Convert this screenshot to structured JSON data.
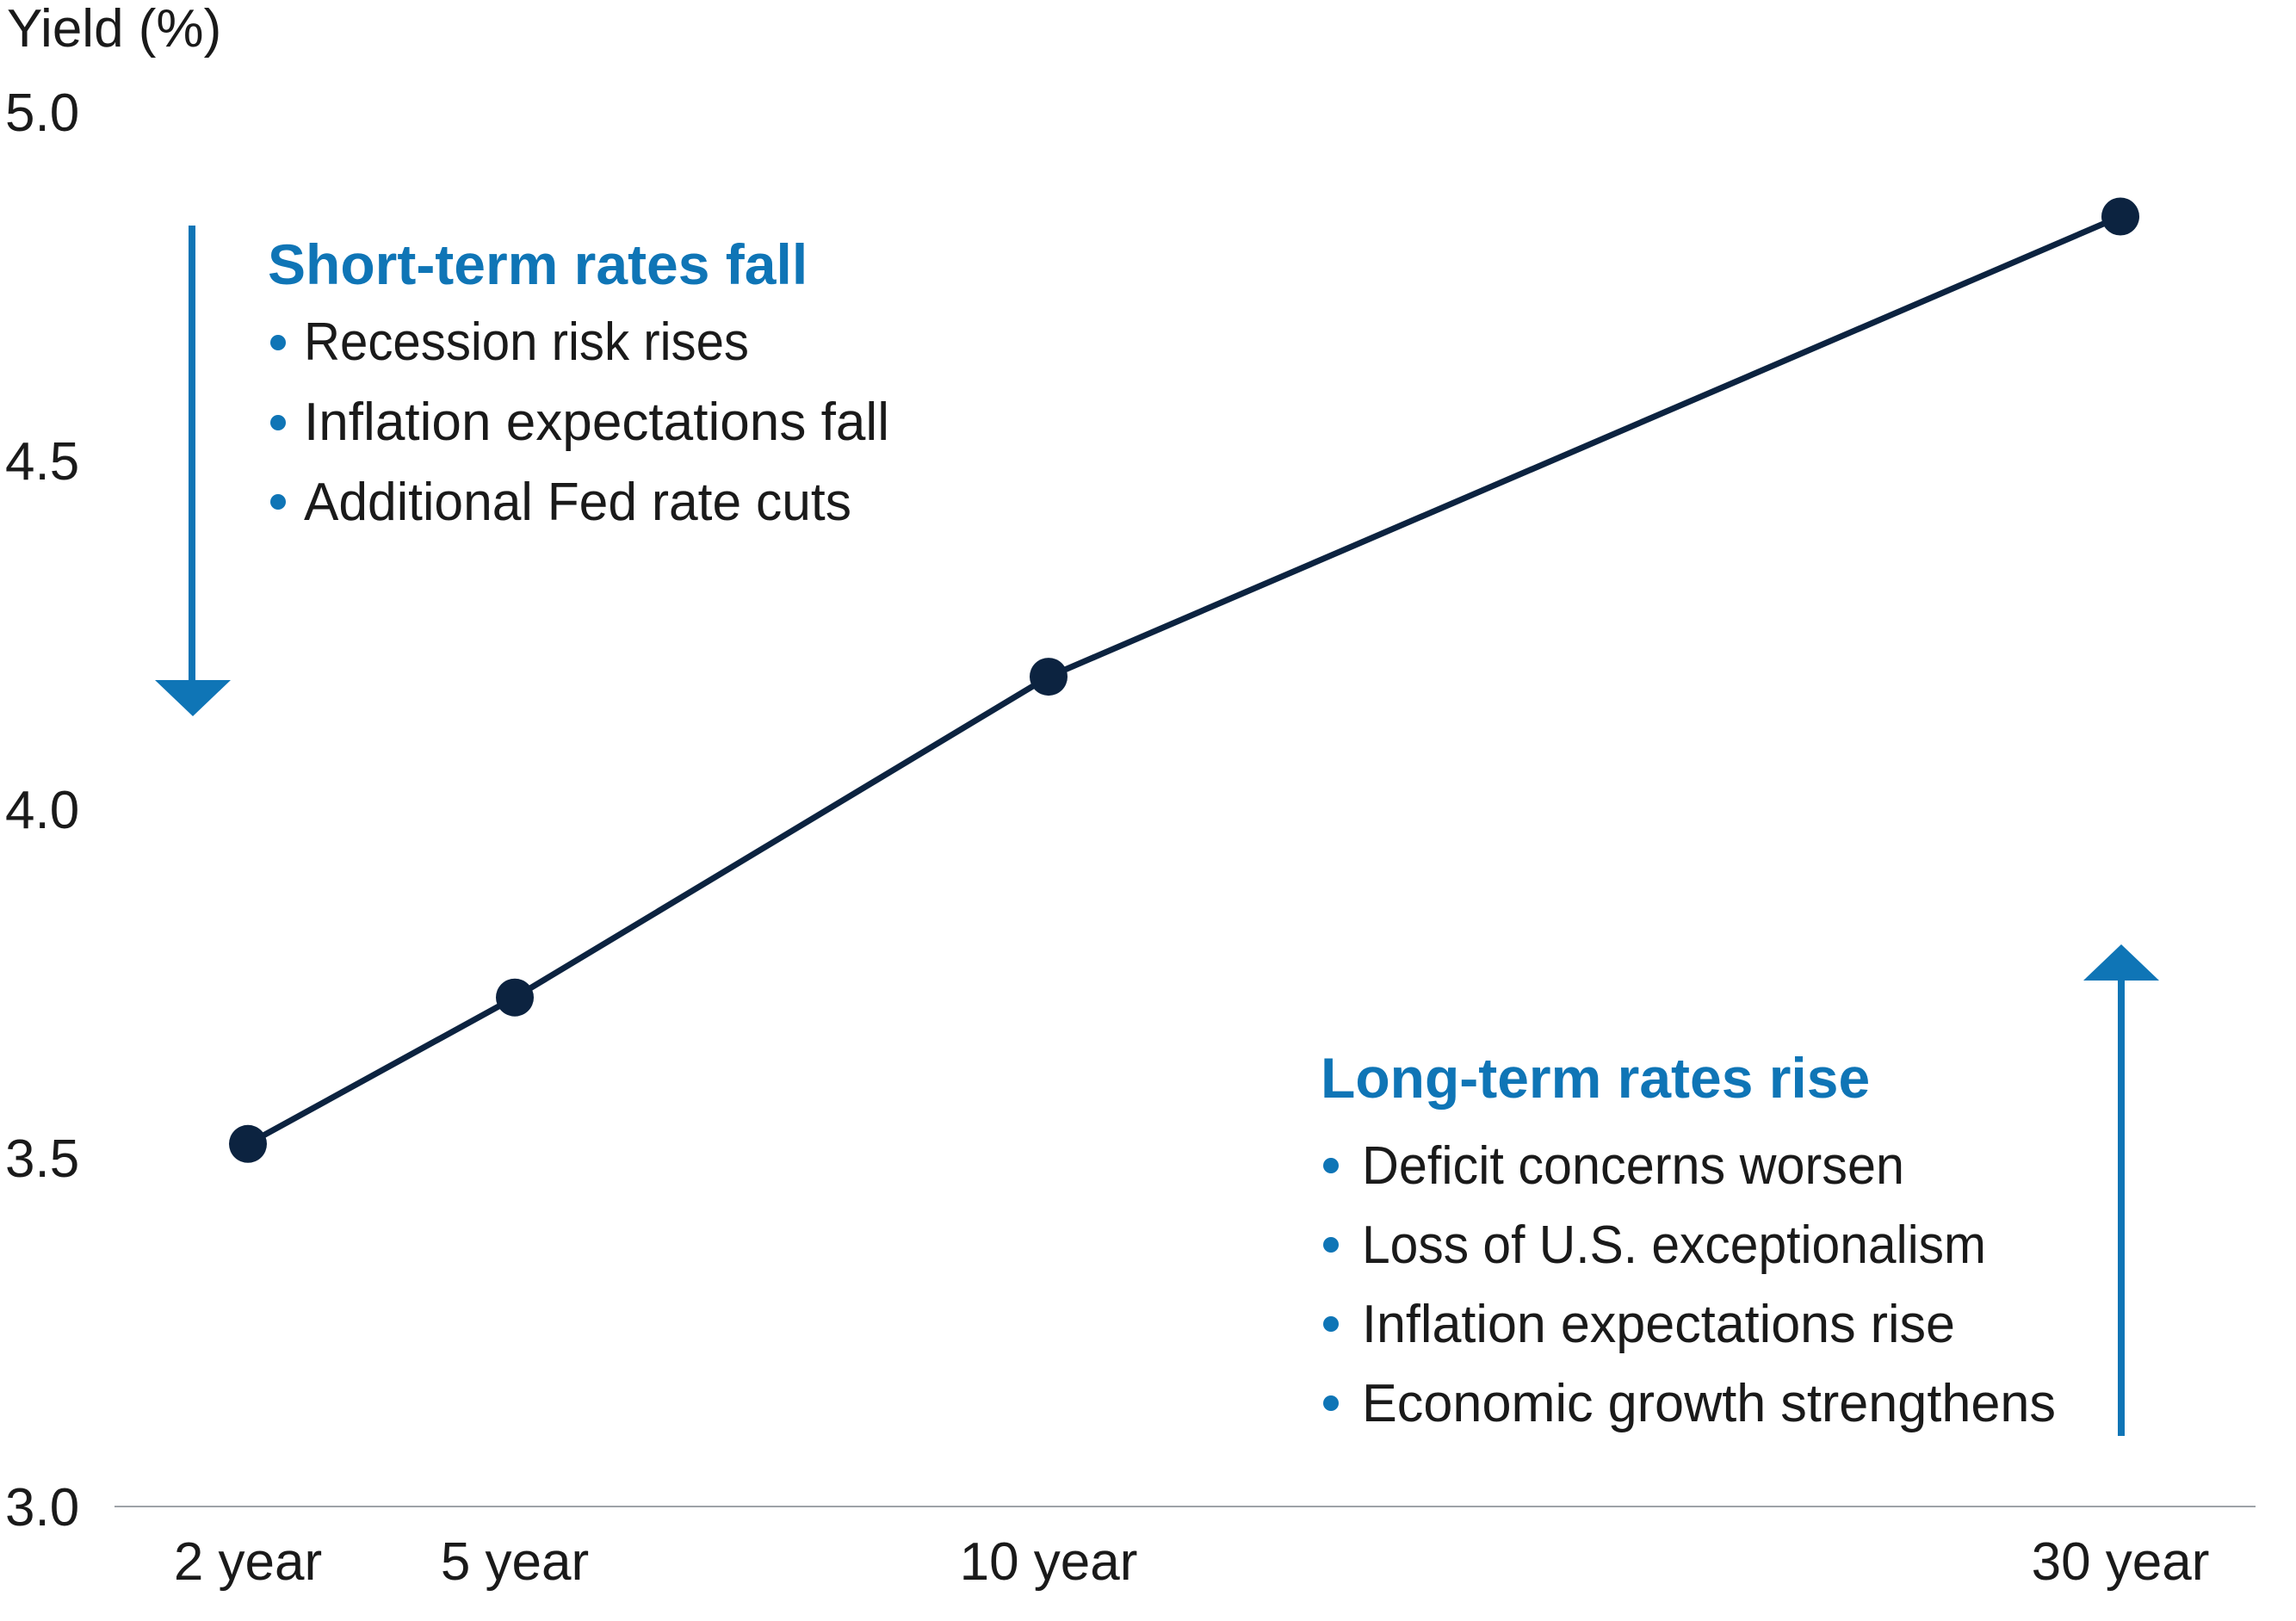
{
  "chart_data": {
    "type": "line",
    "title": "",
    "ylabel": "Yield (%)",
    "xlabel": "",
    "categories": [
      "2 year",
      "5 year",
      "10 year",
      "30 year"
    ],
    "x": [
      2,
      5,
      10,
      30
    ],
    "series": [
      {
        "values": [
          3.52,
          3.73,
          4.19,
          4.85
        ]
      }
    ],
    "ylim": [
      3.0,
      5.0
    ],
    "yticks": [
      "3.0",
      "3.5",
      "4.0",
      "4.5",
      "5.0"
    ],
    "grid": false,
    "annotations": [
      {
        "id": "short",
        "heading": "Short-term rates fall",
        "bullets": [
          "Recession risk rises",
          "Inflation expectations fall",
          "Additional Fed rate cuts"
        ],
        "arrow": "down"
      },
      {
        "id": "long",
        "heading": "Long-term rates rise",
        "bullets": [
          "Deficit concerns worsen",
          "Loss of U.S. exceptionalism",
          "Inflation expectations rise",
          "Economic growth strengthens"
        ],
        "arrow": "up"
      }
    ],
    "colors": {
      "line": "#0c2340",
      "accent": "#0f75b6",
      "axis": "#9ea3a8",
      "text": "#1a1a1a"
    }
  }
}
